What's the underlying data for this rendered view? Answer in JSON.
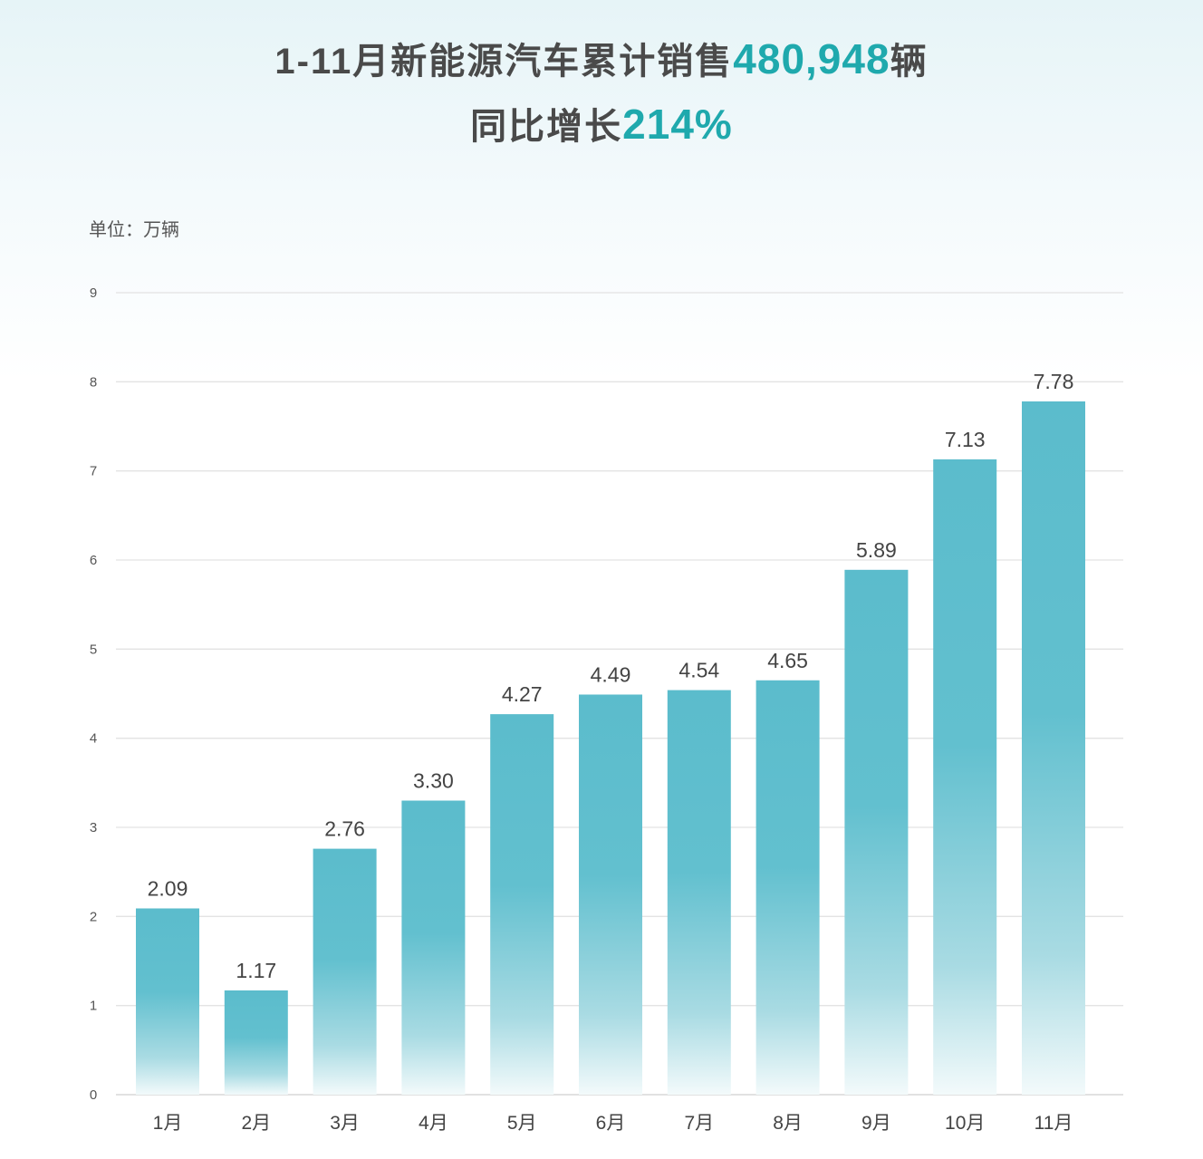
{
  "header": {
    "line1_prefix": "1-11月新能源汽车累计销售",
    "line1_value": "480,948",
    "line1_suffix": "辆",
    "line2_prefix": "同比增长",
    "line2_value": "214%"
  },
  "colors": {
    "accent": "#1fa9ad",
    "bar": "#5bbccc",
    "grid": "#e3e3e3",
    "text": "#4a4a4a"
  },
  "chart_data": {
    "type": "bar",
    "title": "",
    "unit_label": "单位：万辆",
    "xlabel": "",
    "ylabel": "",
    "categories": [
      "1月",
      "2月",
      "3月",
      "4月",
      "5月",
      "6月",
      "7月",
      "8月",
      "9月",
      "10月",
      "11月"
    ],
    "values": [
      2.09,
      1.17,
      2.76,
      3.3,
      4.27,
      4.49,
      4.54,
      4.65,
      5.89,
      7.13,
      7.78
    ],
    "value_labels": [
      "2.09",
      "1.17",
      "2.76",
      "3.30",
      "4.27",
      "4.49",
      "4.54",
      "4.65",
      "5.89",
      "7.13",
      "7.78"
    ],
    "ylim": [
      0,
      9
    ],
    "yticks": [
      0,
      1,
      2,
      3,
      4,
      5,
      6,
      7,
      8,
      9
    ],
    "grid": true,
    "legend": "none"
  }
}
